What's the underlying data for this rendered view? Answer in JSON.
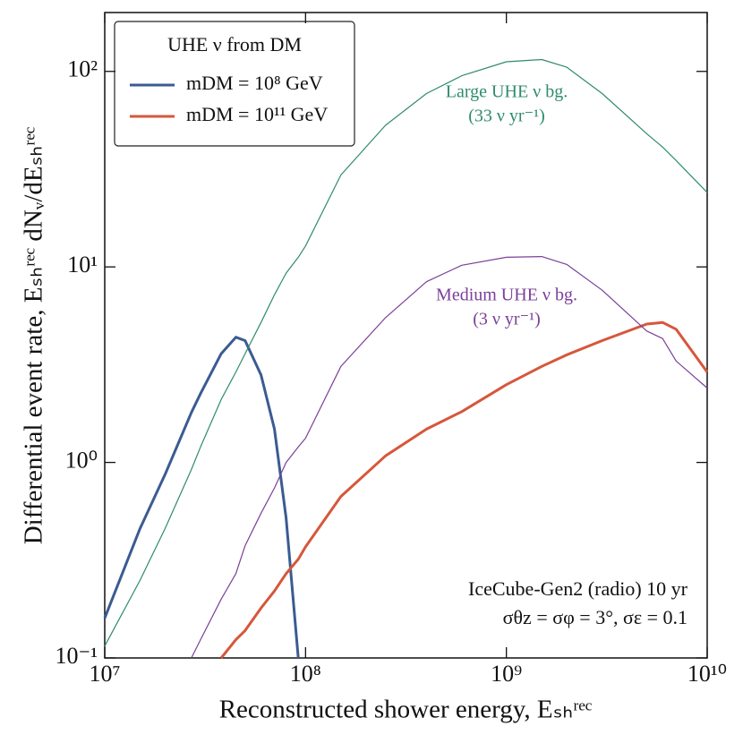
{
  "chart_data": {
    "type": "line",
    "xlabel": "Reconstructed shower energy, Eₛₕʳᵉᶜ",
    "ylabel": "Differential event rate, Eₛₕʳᵉᶜ dNᵥ/dEₛₕʳᵉᶜ",
    "xscale": "log",
    "yscale": "log",
    "xlim": [
      10000000,
      10000000000
    ],
    "ylim": [
      0.1,
      200
    ],
    "xticks": [
      {
        "value": 10000000,
        "label": "10⁷"
      },
      {
        "value": 100000000,
        "label": "10⁸"
      },
      {
        "value": 1000000000,
        "label": "10⁹"
      },
      {
        "value": 10000000000,
        "label": "10¹⁰"
      }
    ],
    "yticks": [
      {
        "value": 0.1,
        "label": "10⁻¹"
      },
      {
        "value": 1,
        "label": "10⁰"
      },
      {
        "value": 10,
        "label": "10¹"
      },
      {
        "value": 100,
        "label": "10²"
      }
    ],
    "legend": {
      "title": "UHE ν from DM",
      "loc": "upper left"
    },
    "x": [
      10000000,
      15000000,
      20000000,
      27000000,
      30000000,
      38000000,
      45000000,
      50000000,
      60000000,
      70000000,
      80000000,
      92000000,
      100000000,
      150000000,
      250000000,
      400000000,
      600000000,
      1000000000,
      1500000000,
      2000000000,
      3000000000,
      5000000000,
      6000000000,
      7000000000,
      10000000000
    ],
    "series": [
      {
        "name": "mDM = 10⁸ GeV",
        "color": "#3b5b92",
        "width": 3,
        "legend": true,
        "values": [
          0.16,
          0.46,
          0.87,
          1.8,
          2.25,
          3.6,
          4.37,
          4.2,
          2.8,
          1.48,
          0.52,
          0.1,
          null,
          null,
          null,
          null,
          null,
          null,
          null,
          null,
          null,
          null,
          null,
          null,
          null
        ]
      },
      {
        "name": "mDM = 10¹¹ GeV",
        "color": "#d6573b",
        "width": 3,
        "legend": true,
        "values": [
          null,
          null,
          null,
          null,
          null,
          0.1,
          0.124,
          0.138,
          0.18,
          0.22,
          0.27,
          0.32,
          0.37,
          0.67,
          1.08,
          1.48,
          1.82,
          2.5,
          3.1,
          3.55,
          4.2,
          5.1,
          5.2,
          4.8,
          2.9
        ]
      },
      {
        "name": "Large UHE ν bg.",
        "color": "#2e8b6e",
        "width": 1.2,
        "legend": false,
        "values": [
          0.115,
          0.25,
          0.46,
          0.92,
          1.2,
          2.1,
          2.9,
          3.6,
          5.2,
          7.2,
          9.3,
          11.2,
          12.8,
          29.5,
          53,
          77,
          95,
          112,
          115,
          105,
          77,
          48,
          41,
          35,
          24
        ]
      },
      {
        "name": "Medium UHE ν bg.",
        "color": "#7b3f98",
        "width": 1.2,
        "legend": false,
        "values": [
          null,
          null,
          null,
          0.1,
          0.124,
          0.2,
          0.27,
          0.375,
          0.55,
          0.74,
          1.0,
          1.2,
          1.33,
          3.1,
          5.5,
          8.4,
          10.2,
          11.2,
          11.3,
          10.3,
          7.6,
          4.7,
          4.3,
          3.3,
          2.4
        ]
      }
    ],
    "annotations": [
      "(33 ν yr⁻¹)",
      "(3 ν yr⁻¹)",
      "IceCube-Gen2 (radio) 10 yr",
      "σθz = σφ = 3°, σε = 0.1"
    ]
  }
}
